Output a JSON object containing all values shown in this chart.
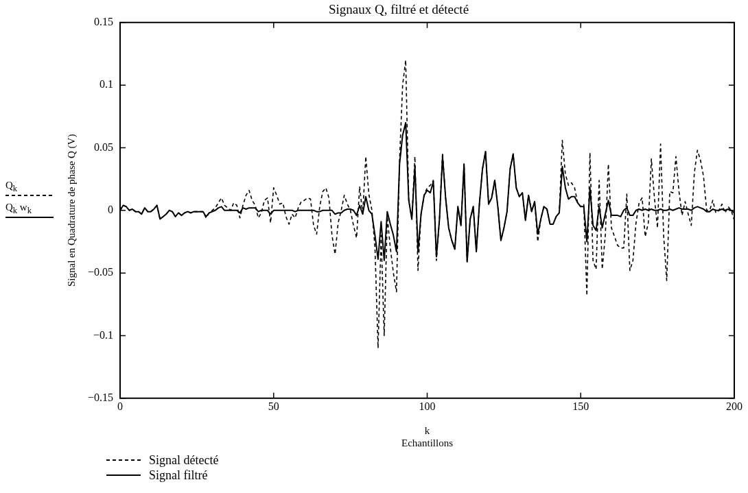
{
  "chart_data": {
    "type": "line",
    "title": "Signaux Q, filtré et détecté",
    "xlabel": "k\nEchantillons",
    "ylabel": "Signal en Quadrature de phase Q (V)",
    "annotations": [
      "Q$_{k}$",
      "Q$_{k}$ w$_{k}$"
    ],
    "x": [
      0,
      1,
      2,
      3,
      4,
      5,
      6,
      7,
      8,
      9,
      10,
      11,
      12,
      13,
      14,
      15,
      16,
      17,
      18,
      19,
      20,
      21,
      22,
      23,
      24,
      25,
      26,
      27,
      28,
      29,
      30,
      31,
      32,
      33,
      34,
      35,
      36,
      37,
      38,
      39,
      40,
      41,
      42,
      43,
      44,
      45,
      46,
      47,
      48,
      49,
      50,
      51,
      52,
      53,
      54,
      55,
      56,
      57,
      58,
      59,
      60,
      61,
      62,
      63,
      64,
      65,
      66,
      67,
      68,
      69,
      70,
      71,
      72,
      73,
      74,
      75,
      76,
      77,
      78,
      79,
      80,
      81,
      82,
      83,
      84,
      85,
      86,
      87,
      88,
      89,
      90,
      91,
      92,
      93,
      94,
      95,
      96,
      97,
      98,
      99,
      100,
      101,
      102,
      103,
      104,
      105,
      106,
      107,
      108,
      109,
      110,
      111,
      112,
      113,
      114,
      115,
      116,
      117,
      118,
      119,
      120,
      121,
      122,
      123,
      124,
      125,
      126,
      127,
      128,
      129,
      130,
      131,
      132,
      133,
      134,
      135,
      136,
      137,
      138,
      139,
      140,
      141,
      142,
      143,
      144,
      145,
      146,
      147,
      148,
      149,
      150,
      151,
      152,
      153,
      154,
      155,
      156,
      157,
      158,
      159,
      160,
      161,
      162,
      163,
      164,
      165,
      166,
      167,
      168,
      169,
      170,
      171,
      172,
      173,
      174,
      175,
      176,
      177,
      178,
      179,
      180,
      181,
      182,
      183,
      184,
      185,
      186,
      187,
      188,
      189,
      190,
      191,
      192,
      193,
      194,
      195,
      196,
      197,
      198,
      199,
      200
    ],
    "series": [
      {
        "name": "Signal détecté",
        "color": "#000000",
        "line_style": "dashed",
        "values": [
          0,
          0.004,
          0.003,
          0,
          0.001,
          -0.001,
          -0.001,
          -0.003,
          0.002,
          -0.001,
          -0.001,
          0.001,
          0.004,
          -0.007,
          -0.005,
          -0.003,
          0,
          -0.001,
          -0.005,
          -0.002,
          -0.004,
          -0.002,
          -0.001,
          -0.002,
          -0.001,
          -0.001,
          -0.001,
          -0.001,
          -0.006,
          -0.002,
          0,
          0.002,
          0.006,
          0.01,
          0.004,
          0.002,
          0,
          0.006,
          0.004,
          -0.006,
          0.004,
          0.012,
          0.016,
          0.008,
          0.004,
          -0.006,
          -0.002,
          0.008,
          0.01,
          -0.01,
          0.018,
          0.012,
          0.005,
          0.006,
          -0.005,
          -0.011,
          -0.003,
          -0.006,
          0.002,
          0.007,
          0.008,
          0.01,
          0.009,
          -0.012,
          -0.019,
          0.003,
          0.015,
          0.018,
          0.01,
          -0.02,
          -0.035,
          -0.01,
          0,
          0.012,
          0.005,
          0,
          -0.012,
          -0.022,
          0.019,
          -0.003,
          0.043,
          0.013,
          0,
          -0.03,
          -0.11,
          -0.02,
          -0.1,
          -0.005,
          -0.03,
          -0.05,
          -0.065,
          0.04,
          0.1,
          0.12,
          0.008,
          -0.007,
          0.043,
          -0.048,
          -0.003,
          0.012,
          0.018,
          0.02,
          0.024,
          -0.04,
          -0.007,
          0.046,
          0.01,
          -0.014,
          -0.024,
          -0.031,
          0.003,
          -0.012,
          0.037,
          -0.041,
          -0.007,
          0.003,
          -0.033,
          0.005,
          0.033,
          0.047,
          0.005,
          0.01,
          0.024,
          0.003,
          -0.024,
          -0.014,
          -0.001,
          0.033,
          0.045,
          0.018,
          0.011,
          0.014,
          -0.008,
          0.012,
          -0.001,
          0.007,
          -0.025,
          -0.007,
          0.003,
          0.001,
          -0.011,
          -0.011,
          -0.005,
          -0.002,
          0.056,
          0.029,
          0.02,
          0.022,
          0.018,
          0.006,
          0.003,
          0.005,
          -0.068,
          0.046,
          -0.04,
          -0.047,
          0.024,
          -0.047,
          -0.02,
          0.037,
          -0.014,
          -0.021,
          -0.028,
          -0.03,
          -0.03,
          0.013,
          -0.048,
          -0.04,
          -0.01,
          0.006,
          0.01,
          -0.021,
          -0.01,
          0.041,
          0.01,
          -0.014,
          0.053,
          -0.02,
          -0.056,
          0.015,
          0.014,
          0.043,
          0.015,
          -0.004,
          0.007,
          -0.003,
          -0.012,
          0.03,
          0.048,
          0.04,
          0.027,
          0,
          0,
          0.008,
          -0.002,
          0,
          0.005,
          -0.002,
          0.003,
          0,
          -0.008
        ]
      },
      {
        "name": "Signal filtré",
        "color": "#000000",
        "line_style": "solid",
        "values": [
          0,
          0.004,
          0.003,
          0,
          0.001,
          -0.001,
          -0.001,
          -0.003,
          0.002,
          -0.001,
          -0.001,
          0.001,
          0.004,
          -0.007,
          -0.005,
          -0.003,
          0,
          -0.001,
          -0.005,
          -0.002,
          -0.004,
          -0.002,
          -0.001,
          -0.002,
          -0.001,
          -0.001,
          -0.001,
          -0.001,
          -0.005,
          -0.002,
          -0.001,
          0,
          0.002,
          0.003,
          0,
          0,
          0,
          0,
          0,
          -0.002,
          0.002,
          0.001,
          0.002,
          0.002,
          0.002,
          -0.001,
          0,
          0,
          0,
          -0.003,
          0,
          0,
          0,
          0,
          0,
          0,
          0,
          -0.001,
          0,
          0,
          0,
          0,
          0,
          0,
          -0.001,
          -0.001,
          0,
          0,
          0,
          0,
          -0.003,
          -0.002,
          -0.002,
          0,
          0.001,
          0.001,
          0,
          -0.004,
          0.004,
          -0.003,
          0.011,
          0,
          -0.003,
          -0.02,
          -0.039,
          -0.009,
          -0.04,
          -0.001,
          -0.011,
          -0.02,
          -0.033,
          0.037,
          0.06,
          0.07,
          0.008,
          -0.007,
          0.035,
          -0.033,
          -0.003,
          0.012,
          0.016,
          0.014,
          0.023,
          -0.037,
          -0.007,
          0.043,
          0.01,
          -0.014,
          -0.024,
          -0.031,
          0.003,
          -0.012,
          0.037,
          -0.041,
          -0.007,
          0.003,
          -0.033,
          0.005,
          0.033,
          0.047,
          0.005,
          0.01,
          0.024,
          0.003,
          -0.024,
          -0.014,
          -0.001,
          0.033,
          0.045,
          0.018,
          0.011,
          0.014,
          -0.008,
          0.012,
          -0.001,
          0.007,
          -0.019,
          -0.007,
          0.003,
          0.001,
          -0.011,
          -0.011,
          -0.005,
          -0.002,
          0.035,
          0.018,
          0.009,
          0.011,
          0.011,
          0.006,
          0.003,
          0.003,
          -0.025,
          0.018,
          -0.012,
          -0.016,
          0.003,
          -0.014,
          -0.003,
          0.008,
          -0.004,
          -0.004,
          -0.004,
          -0.005,
          0,
          0.002,
          -0.004,
          -0.004,
          0,
          0.001,
          0,
          0.001,
          0,
          0.001,
          0,
          0,
          0.001,
          0,
          0,
          0.001,
          0,
          0.001,
          0.002,
          0.001,
          0.001,
          0.001,
          0,
          0.002,
          0.003,
          0.002,
          0.001,
          -0.001,
          -0.001,
          0.001,
          0,
          0,
          0.001,
          0,
          0.001,
          0,
          -0.002
        ]
      }
    ],
    "xlim": [
      0,
      200
    ],
    "xticks": [
      0,
      50,
      100,
      150,
      200
    ],
    "ylim": [
      -0.15,
      0.15
    ],
    "yticks": [
      {
        "value": -0.15,
        "label": "−0.15"
      },
      {
        "value": -0.1,
        "label": "−0.1"
      },
      {
        "value": -0.05,
        "label": "−0.05"
      },
      0,
      0.05,
      0.1,
      0.15
    ],
    "legend": "bottom left"
  }
}
